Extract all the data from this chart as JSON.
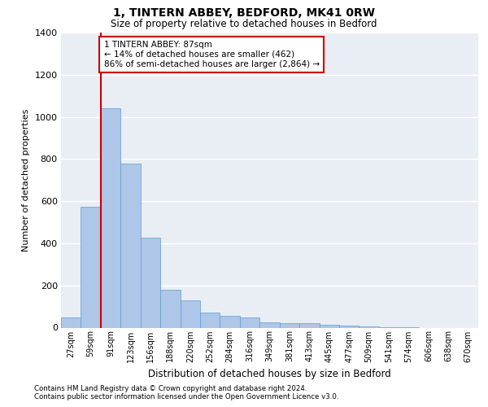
{
  "title": "1, TINTERN ABBEY, BEDFORD, MK41 0RW",
  "subtitle": "Size of property relative to detached houses in Bedford",
  "xlabel": "Distribution of detached houses by size in Bedford",
  "ylabel": "Number of detached properties",
  "categories": [
    "27sqm",
    "59sqm",
    "91sqm",
    "123sqm",
    "156sqm",
    "188sqm",
    "220sqm",
    "252sqm",
    "284sqm",
    "316sqm",
    "349sqm",
    "381sqm",
    "413sqm",
    "445sqm",
    "477sqm",
    "509sqm",
    "541sqm",
    "574sqm",
    "606sqm",
    "638sqm",
    "670sqm"
  ],
  "values": [
    50,
    575,
    1040,
    780,
    425,
    180,
    130,
    70,
    55,
    50,
    25,
    20,
    20,
    15,
    10,
    5,
    2,
    1,
    0,
    0,
    0
  ],
  "bar_color": "#aec6e8",
  "bar_edgecolor": "#5a9fd4",
  "bg_color": "#e8eef4",
  "property_bin_index": 2,
  "vline_color": "#cc0000",
  "annotation_text": "1 TINTERN ABBEY: 87sqm\n← 14% of detached houses are smaller (462)\n86% of semi-detached houses are larger (2,864) →",
  "annotation_box_color": "#cc0000",
  "ylim": [
    0,
    1400
  ],
  "yticks": [
    0,
    200,
    400,
    600,
    800,
    1000,
    1200,
    1400
  ],
  "footer_line1": "Contains HM Land Registry data © Crown copyright and database right 2024.",
  "footer_line2": "Contains public sector information licensed under the Open Government Licence v3.0."
}
